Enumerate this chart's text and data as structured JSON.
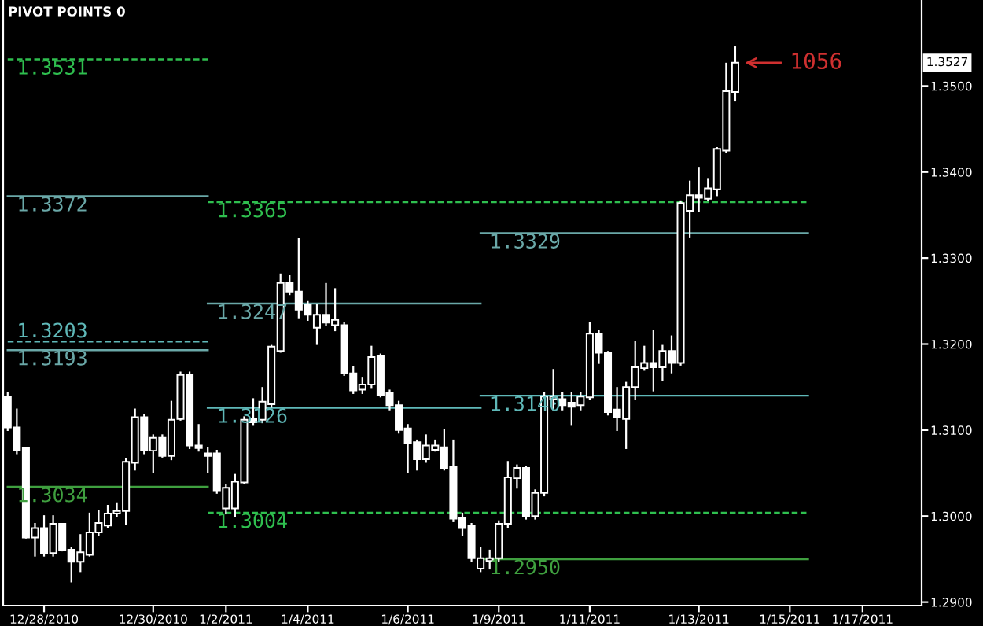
{
  "chart_data": {
    "type": "candlestick",
    "title": "PIVOT POINTS 0",
    "color": "#ffffff",
    "categories": [
      null,
      null,
      null,
      null,
      "12/28/2010",
      null,
      null,
      null,
      null,
      null,
      null,
      null,
      null,
      null,
      null,
      null,
      "12/30/2010",
      null,
      null,
      null,
      null,
      null,
      null,
      null,
      "1/2/2011",
      null,
      null,
      null,
      null,
      null,
      null,
      null,
      null,
      "1/4/2011",
      null,
      null,
      null,
      null,
      null,
      null,
      null,
      null,
      null,
      null,
      "1/6/2011",
      null,
      null,
      null,
      null,
      null,
      null,
      null,
      null,
      null,
      "1/9/2011",
      null,
      null,
      null,
      null,
      null,
      null,
      null,
      null,
      null,
      "1/11/2011",
      null,
      null,
      null,
      null,
      null,
      null,
      null,
      null,
      null,
      null,
      null,
      "1/13/2011",
      null,
      null,
      null,
      null,
      null,
      null,
      null,
      null,
      null,
      "1/15/2011",
      null,
      null,
      null,
      null,
      null,
      null,
      null,
      "1/17/2011",
      null,
      null,
      null,
      null,
      null,
      null
    ],
    "ohlc": [
      [
        1.3139,
        1.3143,
        1.31,
        1.3103
      ],
      [
        1.3103,
        1.3124,
        1.3073,
        1.3076
      ],
      [
        1.3079,
        1.3079,
        1.2975,
        1.2975
      ],
      [
        1.2975,
        1.2991,
        1.2954,
        1.2986
      ],
      [
        1.2986,
        1.3,
        1.2954,
        1.2957
      ],
      [
        1.2957,
        1.3,
        1.2954,
        1.2991
      ],
      [
        1.2991,
        1.2991,
        1.296,
        1.296
      ],
      [
        1.2961,
        1.2963,
        1.2924,
        1.2947
      ],
      [
        1.2947,
        1.2978,
        1.2936,
        1.2958
      ],
      [
        1.2955,
        1.3003,
        1.2954,
        1.2981
      ],
      [
        1.2981,
        1.3006,
        1.2978,
        1.2992
      ],
      [
        1.2989,
        1.3012,
        1.2987,
        1.3003
      ],
      [
        1.3003,
        1.3015,
        1.3,
        1.3006
      ],
      [
        1.3006,
        1.3066,
        1.2991,
        1.3063
      ],
      [
        1.3062,
        1.3124,
        1.3054,
        1.3115
      ],
      [
        1.3115,
        1.3118,
        1.3073,
        1.3076
      ],
      [
        1.3076,
        1.3094,
        1.3051,
        1.3091
      ],
      [
        1.3091,
        1.3094,
        1.3069,
        1.307
      ],
      [
        1.307,
        1.3133,
        1.3066,
        1.3112
      ],
      [
        1.3113,
        1.3167,
        1.3112,
        1.3164
      ],
      [
        1.3164,
        1.3167,
        1.3079,
        1.3082
      ],
      [
        1.3082,
        1.3106,
        1.3076,
        1.3079
      ],
      [
        1.3073,
        1.3079,
        1.3051,
        1.307
      ],
      [
        1.3073,
        1.3076,
        1.3027,
        1.303
      ],
      [
        1.3009,
        1.3036,
        1.3003,
        1.3033
      ],
      [
        1.3009,
        1.3048,
        1.3,
        1.304
      ],
      [
        1.3039,
        1.3115,
        1.3038,
        1.3112
      ],
      [
        1.3113,
        1.3136,
        1.3106,
        1.3109
      ],
      [
        1.3112,
        1.3149,
        1.3109,
        1.3133
      ],
      [
        1.313,
        1.3198,
        1.3127,
        1.3197
      ],
      [
        1.3192,
        1.3281,
        1.3191,
        1.3271
      ],
      [
        1.3271,
        1.3279,
        1.3258,
        1.3261
      ],
      [
        1.3261,
        1.3322,
        1.3231,
        1.324
      ],
      [
        1.3246,
        1.3249,
        1.3228,
        1.3234
      ],
      [
        1.3219,
        1.3246,
        1.32,
        1.3234
      ],
      [
        1.3234,
        1.327,
        1.3222,
        1.3225
      ],
      [
        1.3222,
        1.3264,
        1.3216,
        1.3228
      ],
      [
        1.3222,
        1.3225,
        1.3164,
        1.3166
      ],
      [
        1.3166,
        1.3173,
        1.3143,
        1.3146
      ],
      [
        1.3147,
        1.316,
        1.3143,
        1.3153
      ],
      [
        1.3153,
        1.3197,
        1.3149,
        1.3185
      ],
      [
        1.3186,
        1.3188,
        1.3139,
        1.3141
      ],
      [
        1.3143,
        1.3146,
        1.3124,
        1.3129
      ],
      [
        1.3129,
        1.3133,
        1.3097,
        1.31
      ],
      [
        1.3102,
        1.3106,
        1.3051,
        1.3085
      ],
      [
        1.3086,
        1.3088,
        1.3054,
        1.3066
      ],
      [
        1.3066,
        1.3094,
        1.3063,
        1.3082
      ],
      [
        1.3077,
        1.3088,
        1.3076,
        1.3082
      ],
      [
        1.308,
        1.31,
        1.3054,
        1.3056
      ],
      [
        1.3057,
        1.3088,
        1.2994,
        1.2997
      ],
      [
        1.2998,
        1.3003,
        1.2978,
        1.2986
      ],
      [
        1.2989,
        1.2991,
        1.2948,
        1.2951
      ],
      [
        1.2939,
        1.2963,
        1.2936,
        1.2951
      ],
      [
        1.2948,
        1.296,
        1.2939,
        1.2951
      ],
      [
        1.2951,
        1.2994,
        1.2948,
        1.2991
      ],
      [
        1.2991,
        1.3063,
        1.2987,
        1.3045
      ],
      [
        1.3044,
        1.3059,
        1.3033,
        1.3056
      ],
      [
        1.3056,
        1.3057,
        1.2997,
        1.3
      ],
      [
        1.3,
        1.303,
        1.2997,
        1.3027
      ],
      [
        1.3027,
        1.3143,
        1.3024,
        1.3139
      ],
      [
        1.3136,
        1.317,
        1.3124,
        1.3139
      ],
      [
        1.3136,
        1.3143,
        1.3124,
        1.3129
      ],
      [
        1.3132,
        1.3143,
        1.3106,
        1.3127
      ],
      [
        1.3129,
        1.3143,
        1.3124,
        1.3139
      ],
      [
        1.3138,
        1.3225,
        1.3136,
        1.3212
      ],
      [
        1.3212,
        1.3215,
        1.3178,
        1.319
      ],
      [
        1.319,
        1.3191,
        1.3118,
        1.3121
      ],
      [
        1.3124,
        1.3149,
        1.31,
        1.3115
      ],
      [
        1.3113,
        1.3155,
        1.3079,
        1.315
      ],
      [
        1.315,
        1.3203,
        1.3136,
        1.3173
      ],
      [
        1.3172,
        1.3197,
        1.317,
        1.3178
      ],
      [
        1.3178,
        1.3215,
        1.3146,
        1.3173
      ],
      [
        1.3173,
        1.3198,
        1.3158,
        1.3192
      ],
      [
        1.3192,
        1.3209,
        1.3167,
        1.3178
      ],
      [
        1.3178,
        1.3366,
        1.3176,
        1.3364
      ],
      [
        1.3355,
        1.3389,
        1.3325,
        1.3373
      ],
      [
        1.3373,
        1.3405,
        1.3355,
        1.337
      ],
      [
        1.3369,
        1.3392,
        1.3367,
        1.3381
      ],
      [
        1.338,
        1.3428,
        1.3373,
        1.3427
      ],
      [
        1.3425,
        1.3526,
        1.3423,
        1.3494
      ],
      [
        1.3493,
        1.3545,
        1.3483,
        1.3527
      ],
      null,
      null,
      null,
      null,
      null,
      null,
      null,
      null,
      null,
      null,
      null,
      null,
      null,
      null,
      null,
      null,
      null,
      null,
      null,
      null
    ],
    "series": [
      {
        "type": "line",
        "name": "1.3531",
        "color": "#2fbf4f",
        "line_style": "dashed",
        "values": [
          1.3531,
          1.3531,
          1.3531,
          1.3531,
          1.3531,
          1.3531,
          1.3531,
          1.3531,
          1.3531,
          1.3531,
          1.3531,
          1.3531,
          1.3531,
          1.3531,
          1.3531,
          1.3531,
          1.3531,
          1.3531,
          1.3531,
          1.3531,
          1.3531,
          1.3531,
          1.3531,
          null,
          null,
          null,
          null,
          null,
          null,
          null,
          null,
          null,
          null,
          null,
          null,
          null,
          null,
          null,
          null,
          null,
          null,
          null,
          null,
          null,
          null,
          null,
          null,
          null,
          null,
          null,
          null,
          null,
          null,
          null,
          null,
          null,
          null,
          null,
          null,
          null,
          null,
          null,
          null,
          null,
          null,
          null,
          null,
          null,
          null,
          null,
          null,
          null,
          null,
          null,
          null,
          null,
          null,
          null,
          null,
          null,
          null,
          null,
          null,
          null,
          null,
          null,
          null,
          null,
          null,
          null,
          null,
          null,
          null,
          null,
          null,
          null,
          null,
          null,
          null,
          null,
          null
        ]
      },
      {
        "type": "line",
        "name": "1.3372",
        "color": "#6aa8a8",
        "line_style": "solid",
        "values": [
          1.3372,
          1.3372,
          1.3372,
          1.3372,
          1.3372,
          1.3372,
          1.3372,
          1.3372,
          1.3372,
          1.3372,
          1.3372,
          1.3372,
          1.3372,
          1.3372,
          1.3372,
          1.3372,
          1.3372,
          1.3372,
          1.3372,
          1.3372,
          1.3372,
          1.3372,
          1.3372,
          null,
          null,
          null,
          null,
          null,
          null,
          null,
          null,
          null,
          null,
          null,
          null,
          null,
          null,
          null,
          null,
          null,
          null,
          null,
          null,
          null,
          null,
          null,
          null,
          null,
          null,
          null,
          null,
          null,
          null,
          null,
          null,
          null,
          null,
          null,
          null,
          null,
          null,
          null,
          null,
          null,
          null,
          null,
          null,
          null,
          null,
          null,
          null,
          null,
          null,
          null,
          null,
          null,
          null,
          null,
          null,
          null,
          null,
          null,
          null,
          null,
          null,
          null,
          null,
          null,
          null,
          null,
          null,
          null,
          null,
          null,
          null,
          null,
          null,
          null,
          null,
          null,
          null
        ]
      },
      {
        "type": "line",
        "name": "1.3203",
        "color": "#5fb8b8",
        "line_style": "dashed",
        "values": [
          1.3203,
          1.3203,
          1.3203,
          1.3203,
          1.3203,
          1.3203,
          1.3203,
          1.3203,
          1.3203,
          1.3203,
          1.3203,
          1.3203,
          1.3203,
          1.3203,
          1.3203,
          1.3203,
          1.3203,
          1.3203,
          1.3203,
          1.3203,
          1.3203,
          1.3203,
          1.3203,
          null,
          null,
          null,
          null,
          null,
          null,
          null,
          null,
          null,
          null,
          null,
          null,
          null,
          null,
          null,
          null,
          null,
          null,
          null,
          null,
          null,
          null,
          null,
          null,
          null,
          null,
          null,
          null,
          null,
          null,
          null,
          null,
          null,
          null,
          null,
          null,
          null,
          null,
          null,
          null,
          null,
          null,
          null,
          null,
          null,
          null,
          null,
          null,
          null,
          null,
          null,
          null,
          null,
          null,
          null,
          null,
          null,
          null,
          null,
          null,
          null,
          null,
          null,
          null,
          null,
          null,
          null,
          null,
          null,
          null,
          null,
          null,
          null,
          null,
          null,
          null,
          null,
          null
        ]
      },
      {
        "type": "line",
        "name": "1.3193",
        "color": "#6aa8a8",
        "line_style": "solid",
        "values": [
          1.3193,
          1.3193,
          1.3193,
          1.3193,
          1.3193,
          1.3193,
          1.3193,
          1.3193,
          1.3193,
          1.3193,
          1.3193,
          1.3193,
          1.3193,
          1.3193,
          1.3193,
          1.3193,
          1.3193,
          1.3193,
          1.3193,
          1.3193,
          1.3193,
          1.3193,
          1.3193,
          null,
          null,
          null,
          null,
          null,
          null,
          null,
          null,
          null,
          null,
          null,
          null,
          null,
          null,
          null,
          null,
          null,
          null,
          null,
          null,
          null,
          null,
          null,
          null,
          null,
          null,
          null,
          null,
          null,
          null,
          null,
          null,
          null,
          null,
          null,
          null,
          null,
          null,
          null,
          null,
          null,
          null,
          null,
          null,
          null,
          null,
          null,
          null,
          null,
          null,
          null,
          null,
          null,
          null,
          null,
          null,
          null,
          null,
          null,
          null,
          null,
          null,
          null,
          null,
          null,
          null,
          null,
          null,
          null,
          null,
          null,
          null,
          null,
          null,
          null,
          null,
          null,
          null
        ]
      },
      {
        "type": "line",
        "name": "1.3034",
        "color": "#3f9f3f",
        "line_style": "solid",
        "values": [
          1.3034,
          1.3034,
          1.3034,
          1.3034,
          1.3034,
          1.3034,
          1.3034,
          1.3034,
          1.3034,
          1.3034,
          1.3034,
          1.3034,
          1.3034,
          1.3034,
          1.3034,
          1.3034,
          1.3034,
          1.3034,
          1.3034,
          1.3034,
          1.3034,
          1.3034,
          1.3034,
          null,
          null,
          null,
          null,
          null,
          null,
          null,
          null,
          null,
          null,
          null,
          null,
          null,
          null,
          null,
          null,
          null,
          null,
          null,
          null,
          null,
          null,
          null,
          null,
          null,
          null,
          null,
          null,
          null,
          null,
          null,
          null,
          null,
          null,
          null,
          null,
          null,
          null,
          null,
          null,
          null,
          null,
          null,
          null,
          null,
          null,
          null,
          null,
          null,
          null,
          null,
          null,
          null,
          null,
          null,
          null,
          null,
          null,
          null,
          null,
          null,
          null,
          null,
          null,
          null,
          null,
          null,
          null,
          null,
          null,
          null,
          null,
          null,
          null,
          null,
          null,
          null,
          null
        ]
      },
      {
        "type": "line",
        "name": "1.3365",
        "color": "#2fbf4f",
        "line_style": "dashed",
        "values": [
          null,
          null,
          null,
          null,
          null,
          null,
          null,
          null,
          null,
          null,
          null,
          null,
          null,
          null,
          null,
          null,
          null,
          null,
          null,
          null,
          null,
          null,
          1.3365,
          1.3365,
          1.3365,
          1.3365,
          1.3365,
          1.3365,
          1.3365,
          1.3365,
          1.3365,
          1.3365,
          1.3365,
          1.3365,
          1.3365,
          1.3365,
          1.3365,
          1.3365,
          1.3365,
          1.3365,
          1.3365,
          1.3365,
          1.3365,
          1.3365,
          1.3365,
          1.3365,
          1.3365,
          1.3365,
          1.3365,
          1.3365,
          1.3365,
          1.3365,
          1.3365,
          1.3365,
          1.3365,
          1.3365,
          1.3365,
          1.3365,
          1.3365,
          1.3365,
          1.3365,
          1.3365,
          1.3365,
          1.3365,
          1.3365,
          1.3365,
          1.3365,
          1.3365,
          1.3365,
          1.3365,
          1.3365,
          1.3365,
          1.3365,
          1.3365,
          1.3365,
          1.3365,
          1.3365,
          1.3365,
          1.3365,
          1.3365,
          1.3365,
          1.3365,
          1.3365,
          1.3365,
          1.3365,
          1.3365,
          1.3365,
          1.3365,
          1.3365,
          null,
          null,
          null,
          null,
          null,
          null,
          null,
          null,
          null,
          null,
          null,
          null
        ]
      },
      {
        "type": "line",
        "name": "1.3247",
        "color": "#6aa8a8",
        "line_style": "solid",
        "values": [
          null,
          null,
          null,
          null,
          null,
          null,
          null,
          null,
          null,
          null,
          null,
          null,
          null,
          null,
          null,
          null,
          null,
          null,
          null,
          null,
          null,
          null,
          1.3247,
          1.3247,
          1.3247,
          1.3247,
          1.3247,
          1.3247,
          1.3247,
          1.3247,
          1.3247,
          1.3247,
          1.3247,
          1.3247,
          1.3247,
          1.3247,
          1.3247,
          1.3247,
          1.3247,
          1.3247,
          1.3247,
          1.3247,
          1.3247,
          1.3247,
          1.3247,
          1.3247,
          1.3247,
          1.3247,
          1.3247,
          1.3247,
          1.3247,
          1.3247,
          1.3247,
          null,
          null,
          null,
          null,
          null,
          null,
          null,
          null,
          null,
          null,
          null,
          null,
          null,
          null,
          null,
          null,
          null,
          null,
          null,
          null,
          null,
          null,
          null,
          null,
          null,
          null,
          null,
          null,
          null,
          null,
          null,
          null,
          null,
          null,
          null,
          null,
          null,
          null,
          null,
          null,
          null,
          null,
          null,
          null,
          null,
          null,
          null,
          null
        ]
      },
      {
        "type": "line",
        "name": "1.3126",
        "color": "#5fb8b8",
        "line_style": "solid",
        "values": [
          null,
          null,
          null,
          null,
          null,
          null,
          null,
          null,
          null,
          null,
          null,
          null,
          null,
          null,
          null,
          null,
          null,
          null,
          null,
          null,
          null,
          null,
          1.3126,
          1.3126,
          1.3126,
          1.3126,
          1.3126,
          1.3126,
          1.3126,
          1.3126,
          1.3126,
          1.3126,
          1.3126,
          1.3126,
          1.3126,
          1.3126,
          1.3126,
          1.3126,
          1.3126,
          1.3126,
          1.3126,
          1.3126,
          1.3126,
          1.3126,
          1.3126,
          1.3126,
          1.3126,
          1.3126,
          1.3126,
          1.3126,
          1.3126,
          1.3126,
          1.3126,
          null,
          null,
          null,
          null,
          null,
          null,
          null,
          null,
          null,
          null,
          null,
          null,
          null,
          null,
          null,
          null,
          null,
          null,
          null,
          null,
          null,
          null,
          null,
          null,
          null,
          null,
          null,
          null,
          null,
          null,
          null,
          null,
          null,
          null,
          null,
          null,
          null,
          null,
          null,
          null,
          null,
          null,
          null,
          null,
          null,
          null,
          null,
          null
        ]
      },
      {
        "type": "line",
        "name": "1.3004",
        "color": "#2fbf4f",
        "line_style": "dashed",
        "values": [
          null,
          null,
          null,
          null,
          null,
          null,
          null,
          null,
          null,
          null,
          null,
          null,
          null,
          null,
          null,
          null,
          null,
          null,
          null,
          null,
          null,
          null,
          1.3004,
          1.3004,
          1.3004,
          1.3004,
          1.3004,
          1.3004,
          1.3004,
          1.3004,
          1.3004,
          1.3004,
          1.3004,
          1.3004,
          1.3004,
          1.3004,
          1.3004,
          1.3004,
          1.3004,
          1.3004,
          1.3004,
          1.3004,
          1.3004,
          1.3004,
          1.3004,
          1.3004,
          1.3004,
          1.3004,
          1.3004,
          1.3004,
          1.3004,
          1.3004,
          1.3004,
          1.3004,
          1.3004,
          1.3004,
          1.3004,
          1.3004,
          1.3004,
          1.3004,
          1.3004,
          1.3004,
          1.3004,
          1.3004,
          1.3004,
          1.3004,
          1.3004,
          1.3004,
          1.3004,
          1.3004,
          1.3004,
          1.3004,
          1.3004,
          1.3004,
          1.3004,
          1.3004,
          1.3004,
          1.3004,
          1.3004,
          1.3004,
          1.3004,
          1.3004,
          1.3004,
          1.3004,
          1.3004,
          1.3004,
          1.3004,
          1.3004,
          1.3004,
          null,
          null,
          null,
          null,
          null,
          null,
          null,
          null,
          null,
          null,
          null,
          null
        ]
      },
      {
        "type": "line",
        "name": "1.3329",
        "color": "#6aa8a8",
        "line_style": "solid",
        "values": [
          null,
          null,
          null,
          null,
          null,
          null,
          null,
          null,
          null,
          null,
          null,
          null,
          null,
          null,
          null,
          null,
          null,
          null,
          null,
          null,
          null,
          null,
          null,
          null,
          null,
          null,
          null,
          null,
          null,
          null,
          null,
          null,
          null,
          null,
          null,
          null,
          null,
          null,
          null,
          null,
          null,
          null,
          null,
          null,
          null,
          null,
          null,
          null,
          null,
          null,
          null,
          null,
          1.3329,
          1.3329,
          1.3329,
          1.3329,
          1.3329,
          1.3329,
          1.3329,
          1.3329,
          1.3329,
          1.3329,
          1.3329,
          1.3329,
          1.3329,
          1.3329,
          1.3329,
          1.3329,
          1.3329,
          1.3329,
          1.3329,
          1.3329,
          1.3329,
          1.3329,
          1.3329,
          1.3329,
          1.3329,
          1.3329,
          1.3329,
          1.3329,
          1.3329,
          1.3329,
          1.3329,
          1.3329,
          1.3329,
          1.3329,
          1.3329,
          1.3329,
          1.3329,
          null,
          null,
          null,
          null,
          null,
          null,
          null,
          null,
          null,
          null,
          null,
          null
        ]
      },
      {
        "type": "line",
        "name": "1.3140",
        "color": "#5fb8b8",
        "line_style": "solid",
        "values": [
          null,
          null,
          null,
          null,
          null,
          null,
          null,
          null,
          null,
          null,
          null,
          null,
          null,
          null,
          null,
          null,
          null,
          null,
          null,
          null,
          null,
          null,
          null,
          null,
          null,
          null,
          null,
          null,
          null,
          null,
          null,
          null,
          null,
          null,
          null,
          null,
          null,
          null,
          null,
          null,
          null,
          null,
          null,
          null,
          null,
          null,
          null,
          null,
          null,
          null,
          null,
          null,
          1.314,
          1.314,
          1.314,
          1.314,
          1.314,
          1.314,
          1.314,
          1.314,
          1.314,
          1.314,
          1.314,
          1.314,
          1.314,
          1.314,
          1.314,
          1.314,
          1.314,
          1.314,
          1.314,
          1.314,
          1.314,
          1.314,
          1.314,
          1.314,
          1.314,
          1.314,
          1.314,
          1.314,
          1.314,
          1.314,
          1.314,
          1.314,
          1.314,
          1.314,
          1.314,
          1.314,
          1.314,
          null,
          null,
          null,
          null,
          null,
          null,
          null,
          null,
          null,
          null,
          null,
          null
        ]
      },
      {
        "type": "line",
        "name": "1.2950",
        "color": "#3f9f3f",
        "line_style": "solid",
        "values": [
          null,
          null,
          null,
          null,
          null,
          null,
          null,
          null,
          null,
          null,
          null,
          null,
          null,
          null,
          null,
          null,
          null,
          null,
          null,
          null,
          null,
          null,
          null,
          null,
          null,
          null,
          null,
          null,
          null,
          null,
          null,
          null,
          null,
          null,
          null,
          null,
          null,
          null,
          null,
          null,
          null,
          null,
          null,
          null,
          null,
          null,
          null,
          null,
          null,
          null,
          null,
          null,
          1.295,
          1.295,
          1.295,
          1.295,
          1.295,
          1.295,
          1.295,
          1.295,
          1.295,
          1.295,
          1.295,
          1.295,
          1.295,
          1.295,
          1.295,
          1.295,
          1.295,
          1.295,
          1.295,
          1.295,
          1.295,
          1.295,
          1.295,
          1.295,
          1.295,
          1.295,
          1.295,
          1.295,
          1.295,
          1.295,
          1.295,
          1.295,
          1.295,
          1.295,
          1.295,
          1.295,
          1.295,
          null,
          null,
          null,
          null,
          null,
          null,
          null,
          null,
          null,
          null,
          null,
          null
        ]
      }
    ],
    "annotations": [
      {
        "text": "1.3527",
        "y": 1.3527
      },
      "1056"
    ],
    "ylim": [
      1.2896,
      1.36
    ],
    "yticks": [
      {
        "value": 1.29,
        "label": "1.2900"
      },
      {
        "value": 1.3,
        "label": "1.3000"
      },
      {
        "value": 1.31,
        "label": "1.3100"
      },
      {
        "value": 1.32,
        "label": "1.3200"
      },
      {
        "value": 1.33,
        "label": "1.3300"
      },
      {
        "value": 1.34,
        "label": "1.3400"
      },
      {
        "value": 1.35,
        "label": "1.3500"
      }
    ],
    "grid": false,
    "legend": false
  }
}
